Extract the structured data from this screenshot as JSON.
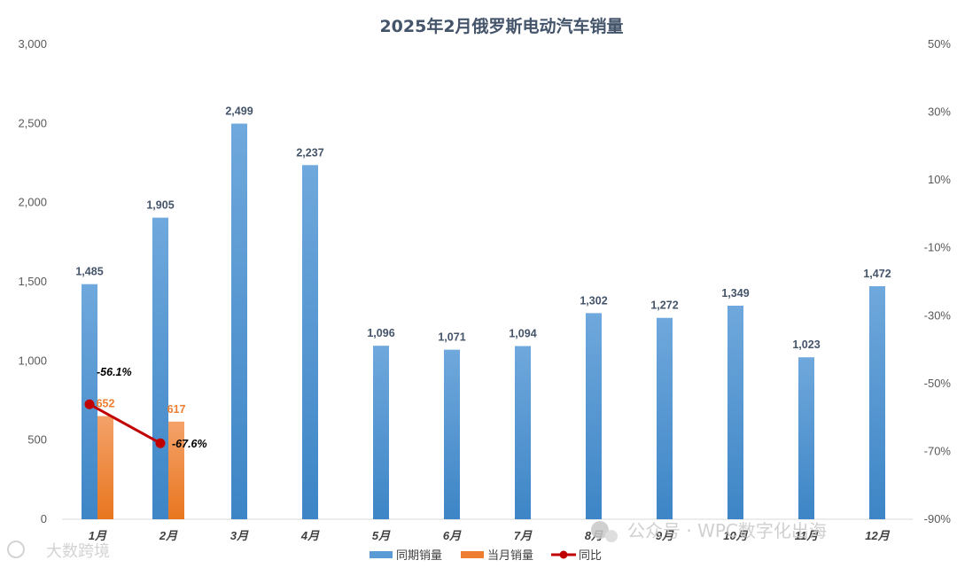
{
  "chart_data": {
    "type": "bar",
    "title": "2025年2月俄罗斯电动汽车销量",
    "categories": [
      "1月",
      "2月",
      "3月",
      "4月",
      "5月",
      "6月",
      "7月",
      "8月",
      "9月",
      "10月",
      "11月",
      "12月"
    ],
    "series": [
      {
        "name": "同期销量",
        "type": "bar",
        "axis": "left",
        "color": "#5b9bd5",
        "values": [
          1485,
          1905,
          2499,
          2237,
          1096,
          1071,
          1094,
          1302,
          1272,
          1349,
          1023,
          1472
        ]
      },
      {
        "name": "当月销量",
        "type": "bar",
        "axis": "left",
        "color": "#ed7d31",
        "values": [
          652,
          617,
          null,
          null,
          null,
          null,
          null,
          null,
          null,
          null,
          null,
          null
        ]
      },
      {
        "name": "同比",
        "type": "line",
        "axis": "right",
        "color": "#c00000",
        "values": [
          -56.1,
          -67.6,
          null,
          null,
          null,
          null,
          null,
          null,
          null,
          null,
          null,
          null
        ]
      }
    ],
    "data_labels": {
      "同期销量": [
        "1,485",
        "1,905",
        "2,499",
        "2,237",
        "1,096",
        "1,071",
        "1,094",
        "1,302",
        "1,272",
        "1,349",
        "1,023",
        "1,472"
      ],
      "当月销量": [
        "652",
        "617"
      ],
      "同比": [
        "-56.1%",
        "-67.6%"
      ]
    },
    "ylim": [
      0,
      3000
    ],
    "yticks": [
      "0",
      "500",
      "1,000",
      "1,500",
      "2,000",
      "2,500",
      "3,000"
    ],
    "y2lim": [
      -90,
      50
    ],
    "y2ticks": [
      "-90%",
      "-70%",
      "-50%",
      "-30%",
      "-10%",
      "10%",
      "30%",
      "50%"
    ],
    "grid": false,
    "legend": "bottom"
  },
  "watermarks": {
    "left": "大数跨境",
    "right": "公众号 · WPC数字化出海"
  }
}
